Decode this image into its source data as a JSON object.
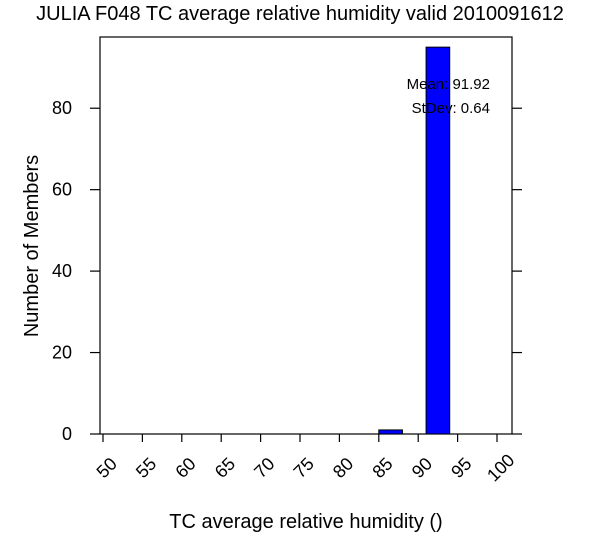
{
  "chart_data": {
    "type": "bar",
    "title": "JULIA F048 TC average relative humidity valid 2010091612",
    "xlabel": "TC average relative humidity ()",
    "ylabel": "Number of Members",
    "xlim": [
      50,
      100
    ],
    "ylim": [
      0,
      97
    ],
    "x_ticks": [
      50,
      55,
      60,
      65,
      70,
      75,
      80,
      85,
      90,
      95,
      100
    ],
    "y_ticks": [
      0,
      20,
      40,
      60,
      80
    ],
    "bins": [
      {
        "from": 85,
        "to": 88,
        "value": 1
      },
      {
        "from": 91,
        "to": 94,
        "value": 95
      }
    ],
    "annotations": {
      "mean": "Mean: 91.92",
      "stdev": "StDev: 0.64"
    },
    "bar_color": "#0000ff",
    "grid": false
  }
}
